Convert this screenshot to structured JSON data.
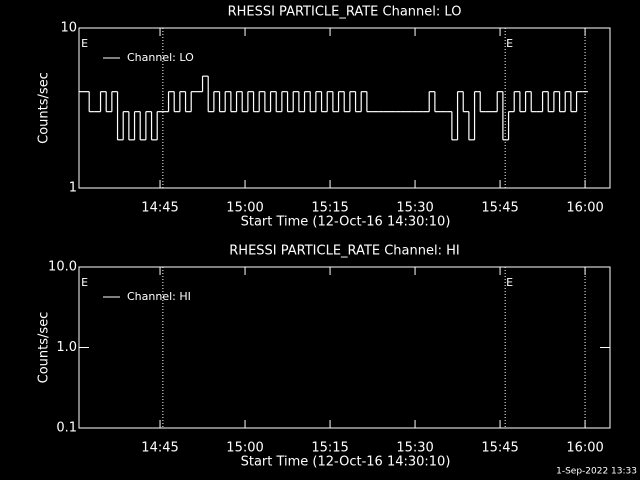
{
  "chart_data": [
    {
      "type": "line",
      "title": "RHESSI PARTICLE_RATE Channel: LO",
      "xlabel": "Start Time (12-Oct-16 14:30:10)",
      "ylabel": "Counts/sec",
      "log_y": true,
      "legend": "upper left",
      "xlim": [
        870.7,
        964.4
      ],
      "ylim": [
        1,
        10
      ],
      "xticks": [
        {
          "value": 885,
          "label": "14:45"
        },
        {
          "value": 900,
          "label": "15:00"
        },
        {
          "value": 915,
          "label": "15:15"
        },
        {
          "value": 930,
          "label": "15:30"
        },
        {
          "value": 945,
          "label": "15:45"
        },
        {
          "value": 960,
          "label": "16:00"
        }
      ],
      "yticks": [
        1,
        10
      ],
      "x": [
        871,
        872,
        873,
        874,
        875,
        876,
        877,
        878,
        879,
        880,
        881,
        882,
        883,
        884,
        885,
        886,
        887,
        888,
        889,
        890,
        891,
        892,
        893,
        894,
        895,
        896,
        897,
        898,
        899,
        900,
        901,
        902,
        903,
        904,
        905,
        906,
        907,
        908,
        909,
        910,
        911,
        912,
        913,
        914,
        915,
        916,
        917,
        918,
        919,
        920,
        921,
        922,
        923,
        924,
        925,
        926,
        927,
        928,
        929,
        930,
        931,
        932,
        933,
        934,
        935,
        936,
        937,
        938,
        939,
        940,
        941,
        942,
        943,
        944,
        945,
        946,
        947,
        948,
        949,
        950,
        951,
        952,
        953,
        954,
        955,
        956,
        957,
        958,
        959,
        960
      ],
      "series": [
        {
          "name": "Channel: LO",
          "color": "#ffffff",
          "values": [
            4,
            4,
            3,
            3,
            4,
            3,
            4,
            2,
            3,
            2,
            3,
            2,
            3,
            2,
            3,
            3,
            4,
            3,
            4,
            3,
            4,
            4,
            5,
            3,
            4,
            3,
            4,
            3,
            4,
            3,
            4,
            3,
            4,
            3,
            4,
            3,
            4,
            3,
            4,
            3,
            4,
            3,
            4,
            3,
            4,
            3,
            4,
            3,
            4,
            3,
            4,
            3,
            3,
            3,
            3,
            3,
            3,
            3,
            3,
            3,
            3,
            3,
            4,
            3,
            3,
            3,
            2,
            4,
            3,
            2,
            4,
            3,
            3,
            3,
            4,
            2,
            3,
            4,
            3,
            4,
            3,
            3,
            4,
            3,
            4,
            3,
            4,
            3,
            4,
            4
          ]
        }
      ],
      "events": [
        885.5,
        945.9,
        960
      ],
      "annotations": [
        {
          "text": "E",
          "x": 870.9
        },
        {
          "text": "E",
          "x": 945.9
        }
      ]
    },
    {
      "type": "line",
      "title": "RHESSI PARTICLE_RATE Channel: HI",
      "xlabel": "Start Time (12-Oct-16 14:30:10)",
      "ylabel": "Counts/sec",
      "log_y": true,
      "legend": "upper left",
      "xlim": [
        870.7,
        964.4
      ],
      "ylim": [
        0.1,
        10
      ],
      "xticks": [
        {
          "value": 885,
          "label": "14:45"
        },
        {
          "value": 900,
          "label": "15:00"
        },
        {
          "value": 915,
          "label": "15:15"
        },
        {
          "value": 930,
          "label": "15:30"
        },
        {
          "value": 945,
          "label": "15:45"
        },
        {
          "value": 960,
          "label": "16:00"
        }
      ],
      "yticks": [
        0.1,
        {
          "value": 1,
          "label": "1.0"
        },
        {
          "value": 10,
          "label": "10.0"
        }
      ],
      "x": [],
      "series": [
        {
          "name": "Channel: HI",
          "color": "#ffffff",
          "values": []
        }
      ],
      "events": [
        885.5,
        945.9,
        960
      ],
      "annotations": [
        {
          "text": "E",
          "x": 870.9
        },
        {
          "text": "E",
          "x": 945.9
        }
      ]
    }
  ],
  "footer": "1-Sep-2022 13:33"
}
